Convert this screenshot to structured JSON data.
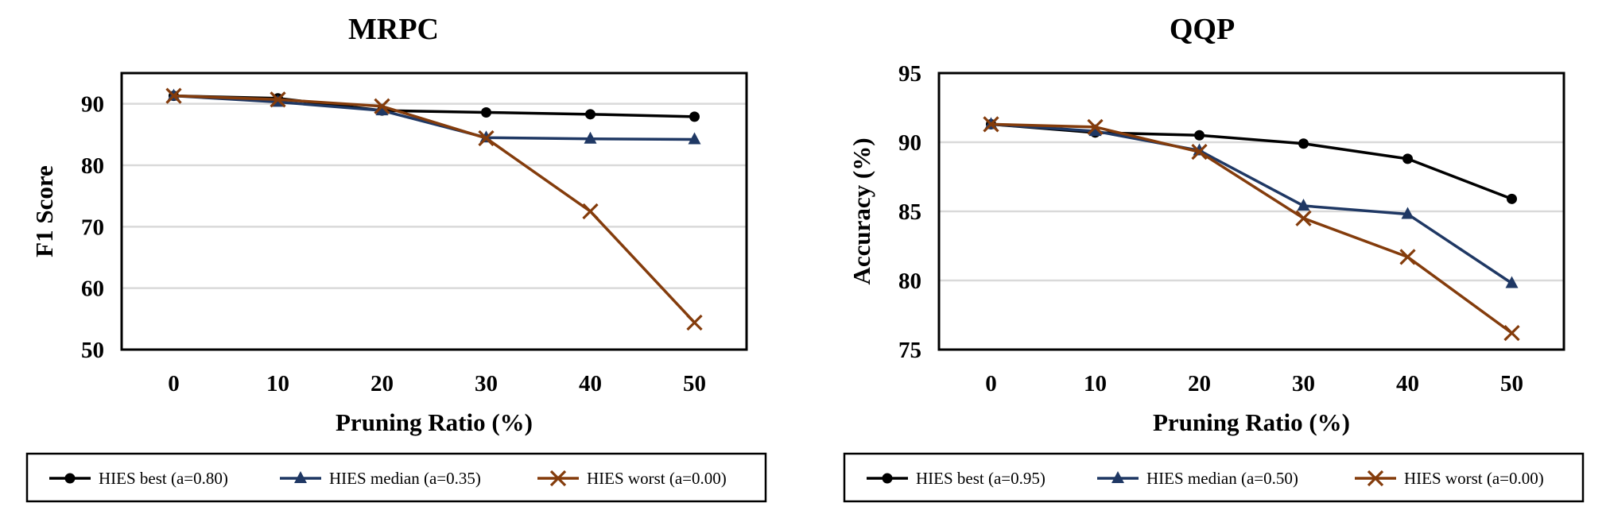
{
  "chart_data": [
    {
      "type": "line",
      "title": "MRPC",
      "xlabel": "Pruning Ratio (%)",
      "ylabel": "F1 Score",
      "categories": [
        "0",
        "10",
        "20",
        "30",
        "40",
        "50"
      ],
      "ylim": [
        50,
        95
      ],
      "yticks": [
        50,
        60,
        70,
        80,
        90
      ],
      "grid": true,
      "legend_position": "bottom",
      "series": [
        {
          "name": "HIES best (a=0.80)",
          "color": "#000000",
          "marker": "circle",
          "values": [
            91.3,
            90.9,
            88.9,
            88.6,
            88.3,
            87.9
          ]
        },
        {
          "name": "HIES median (a=0.35)",
          "color": "#1f3864",
          "marker": "triangle",
          "values": [
            91.3,
            90.3,
            88.9,
            84.5,
            84.3,
            84.2
          ]
        },
        {
          "name": "HIES worst (a=0.00)",
          "color": "#843c0c",
          "marker": "x",
          "values": [
            91.3,
            90.7,
            89.6,
            84.4,
            72.5,
            54.4
          ]
        }
      ]
    },
    {
      "type": "line",
      "title": "QQP",
      "xlabel": "Pruning Ratio (%)",
      "ylabel": "Accuracy (%)",
      "categories": [
        "0",
        "10",
        "20",
        "30",
        "40",
        "50"
      ],
      "ylim": [
        75,
        95
      ],
      "yticks": [
        75,
        80,
        85,
        90,
        95
      ],
      "grid": true,
      "legend_position": "bottom",
      "series": [
        {
          "name": "HIES best (a=0.95)",
          "color": "#000000",
          "marker": "circle",
          "values": [
            91.3,
            90.7,
            90.5,
            89.9,
            88.8,
            85.9
          ]
        },
        {
          "name": "HIES median (a=0.50)",
          "color": "#1f3864",
          "marker": "triangle",
          "values": [
            91.3,
            90.8,
            89.4,
            85.4,
            84.8,
            79.8
          ]
        },
        {
          "name": "HIES worst (a=0.00)",
          "color": "#843c0c",
          "marker": "x",
          "values": [
            91.3,
            91.1,
            89.3,
            84.5,
            81.7,
            76.2
          ]
        }
      ]
    }
  ]
}
